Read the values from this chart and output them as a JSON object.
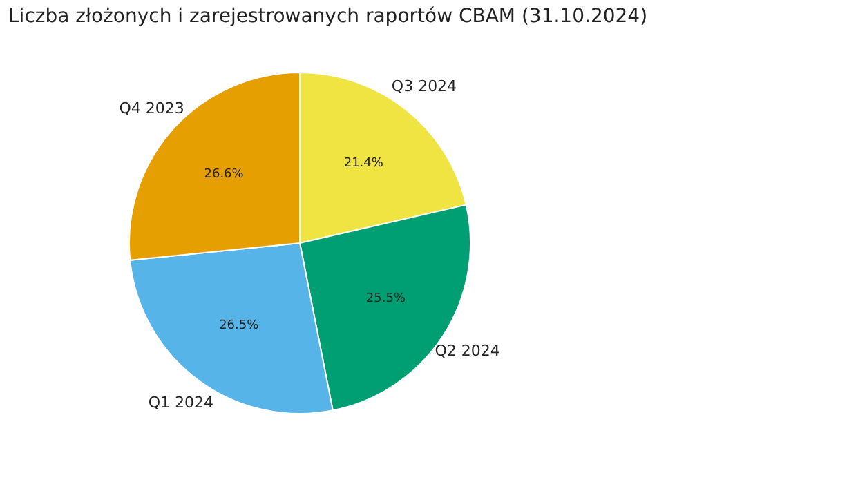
{
  "chart_data": {
    "type": "pie",
    "title": "Liczba złożonych i zarejestrowanych raportów CBAM (31.10.2024)",
    "categories": [
      "Q3 2024",
      "Q2 2024",
      "Q1 2024",
      "Q4 2023"
    ],
    "values": [
      21.4,
      25.5,
      26.5,
      26.6
    ],
    "colors": [
      "#f0e442",
      "#009e73",
      "#56b4e9",
      "#e69f00"
    ],
    "value_labels": [
      "21.4%",
      "25.5%",
      "26.5%",
      "26.6%"
    ],
    "legend": false
  }
}
